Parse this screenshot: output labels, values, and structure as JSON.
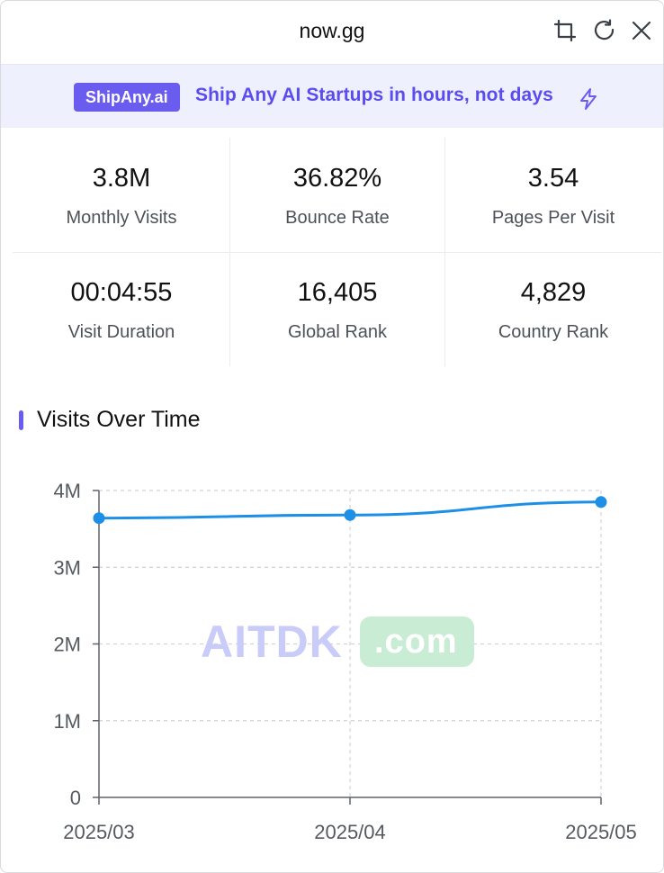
{
  "window": {
    "title": "now.gg",
    "icons": [
      "crop-icon",
      "refresh-icon",
      "close-icon"
    ]
  },
  "banner": {
    "badge": "ShipAny.ai",
    "text": "Ship Any AI Startups in hours, not days",
    "icon": "bolt-icon",
    "accent": "#6b5cf0",
    "background": "#eef0fd"
  },
  "stats": [
    {
      "value": "3.8M",
      "label": "Monthly Visits"
    },
    {
      "value": "36.82%",
      "label": "Bounce Rate"
    },
    {
      "value": "3.54",
      "label": "Pages Per Visit"
    },
    {
      "value": "00:04:55",
      "label": "Visit Duration"
    },
    {
      "value": "16,405",
      "label": "Global Rank"
    },
    {
      "value": "4,829",
      "label": "Country Rank"
    }
  ],
  "section": {
    "title": "Visits Over Time"
  },
  "watermark": {
    "text": "AITDK",
    "suffix": ".com"
  },
  "chart_data": {
    "type": "line",
    "title": "",
    "xlabel": "",
    "ylabel": "",
    "categories": [
      "2025/03",
      "2025/04",
      "2025/05"
    ],
    "series": [
      {
        "values": [
          3640000,
          3680000,
          3850000
        ],
        "color": "#1e8fe6"
      }
    ],
    "ylim": [
      0,
      4000000
    ],
    "yticks": [
      0,
      1000000,
      2000000,
      3000000,
      4000000
    ],
    "ytick_labels": [
      "0",
      "1M",
      "2M",
      "3M",
      "4M"
    ],
    "grid": true
  }
}
